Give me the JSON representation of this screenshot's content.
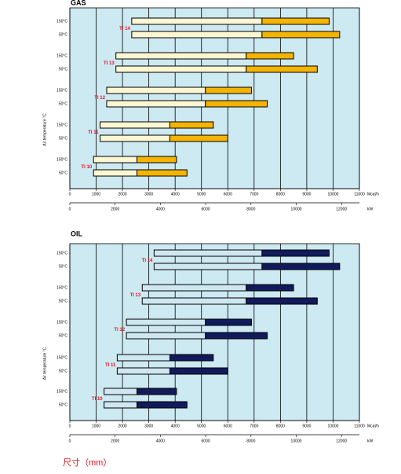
{
  "chart_data": [
    {
      "type": "range_bar",
      "title": "GAS",
      "y_label": "Air temperature °C",
      "xlim": [
        0,
        11000
      ],
      "xticks": [
        0,
        1000,
        2000,
        3000,
        4000,
        5000,
        6000,
        7000,
        8000,
        9000,
        10000,
        11000
      ],
      "x_unit": "Mcal/h",
      "x2lim": [
        0,
        12790
      ],
      "x2ticks": [
        0,
        2000,
        4000,
        6000,
        8000,
        10000,
        12000
      ],
      "x2_unit": "kW",
      "grid": true,
      "background": "#cde9f2",
      "segment_colors": [
        "#fdf6d3",
        "#f4b400"
      ],
      "groups": [
        {
          "name": "TI 14",
          "rows": [
            {
              "label": "150°C",
              "values": [
                2350,
                7300,
                9850
              ]
            },
            {
              "label": "50°C",
              "values": [
                2350,
                7300,
                10250
              ]
            }
          ]
        },
        {
          "name": "TI 13",
          "rows": [
            {
              "label": "150°C",
              "values": [
                1750,
                6700,
                8500
              ]
            },
            {
              "label": "50°C",
              "values": [
                1750,
                6700,
                9400
              ]
            }
          ]
        },
        {
          "name": "TI 12",
          "rows": [
            {
              "label": "150°C",
              "values": [
                1400,
                5150,
                6900
              ]
            },
            {
              "label": "50°C",
              "values": [
                1400,
                5150,
                7500
              ]
            }
          ]
        },
        {
          "name": "TI 11",
          "rows": [
            {
              "label": "150°C",
              "values": [
                1150,
                3800,
                5450
              ]
            },
            {
              "label": "50°C",
              "values": [
                1150,
                3800,
                6000
              ]
            }
          ]
        },
        {
          "name": "TI 10",
          "rows": [
            {
              "label": "150°C",
              "values": [
                900,
                2550,
                4050
              ]
            },
            {
              "label": "50°C",
              "values": [
                900,
                2550,
                4450
              ]
            }
          ]
        }
      ]
    },
    {
      "type": "range_bar",
      "title": "OIL",
      "y_label": "Air temperature °C",
      "xlim": [
        0,
        11000
      ],
      "xticks": [
        0,
        1000,
        2000,
        3000,
        4000,
        5000,
        6000,
        7000,
        8000,
        9000,
        10000,
        11000
      ],
      "x_unit": "Mcal/h",
      "x2lim": [
        0,
        12790
      ],
      "x2ticks": [
        0,
        2000,
        4000,
        6000,
        8000,
        10000,
        12000
      ],
      "x2_unit": "kW",
      "grid": true,
      "background": "#cde9f2",
      "segment_colors": [
        "#cfe7f1",
        "#111b5c"
      ],
      "groups": [
        {
          "name": "TI 14",
          "rows": [
            {
              "label": "150°C",
              "values": [
                3200,
                7300,
                9850
              ]
            },
            {
              "label": "50°C",
              "values": [
                3200,
                7300,
                10250
              ]
            }
          ]
        },
        {
          "name": "TI 13",
          "rows": [
            {
              "label": "150°C",
              "values": [
                2750,
                6700,
                8500
              ]
            },
            {
              "label": "50°C",
              "values": [
                2750,
                6700,
                9400
              ]
            }
          ]
        },
        {
          "name": "TI 12",
          "rows": [
            {
              "label": "150°C",
              "values": [
                2150,
                5150,
                6900
              ]
            },
            {
              "label": "50°C",
              "values": [
                2150,
                5150,
                7500
              ]
            }
          ]
        },
        {
          "name": "TI 11",
          "rows": [
            {
              "label": "150°C",
              "values": [
                1800,
                3800,
                5450
              ]
            },
            {
              "label": "50°C",
              "values": [
                1800,
                3800,
                6000
              ]
            }
          ]
        },
        {
          "name": "TI 10",
          "rows": [
            {
              "label": "150°C",
              "values": [
                1300,
                2550,
                4050
              ]
            },
            {
              "label": "50°C",
              "values": [
                1300,
                2550,
                4450
              ]
            }
          ]
        }
      ]
    }
  ],
  "footer": "尺寸（mm）"
}
